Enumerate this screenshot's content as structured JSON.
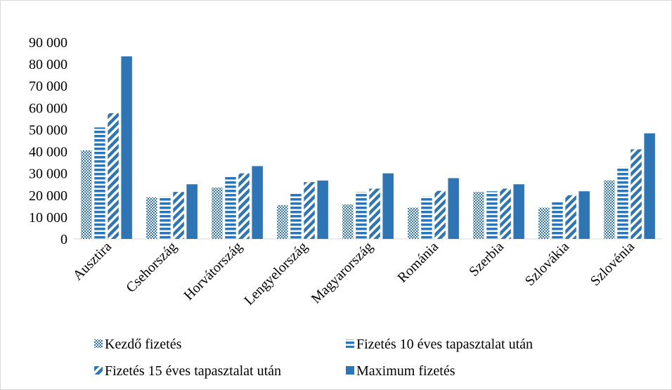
{
  "chart_data": {
    "type": "bar",
    "title": "",
    "xlabel": "",
    "ylabel": "",
    "ylim": [
      0,
      90000
    ],
    "yticks": [
      0,
      10000,
      20000,
      30000,
      40000,
      50000,
      60000,
      70000,
      80000,
      90000
    ],
    "ytick_labels": [
      "0",
      "10 000",
      "20 000",
      "30 000",
      "40 000",
      "50 000",
      "60 000",
      "70 000",
      "80 000",
      "90 000"
    ],
    "grid": false,
    "legend_position": "bottom",
    "categories": [
      "Ausztira",
      "Csehország",
      "Horvátország",
      "Lengyelország",
      "Magyarország",
      "Románia",
      "Szerbia",
      "Szlovákia",
      "Szlovénia"
    ],
    "series": [
      {
        "name": "Kezdő fizetés",
        "pattern": "dots",
        "color": "#2E75B6",
        "values": [
          40500,
          19000,
          23500,
          15500,
          15800,
          14300,
          21500,
          14300,
          26800
        ]
      },
      {
        "name": "Fizetés 10 éves tapasztalat után",
        "pattern": "horizontal-stripes",
        "color": "#2E75B6",
        "values": [
          51000,
          19500,
          29000,
          21000,
          21500,
          19500,
          21800,
          17500,
          33000
        ]
      },
      {
        "name": "Fizetés 15 éves tapasztalat után",
        "pattern": "diagonal-stripes",
        "color": "#2E75B6",
        "values": [
          57500,
          21500,
          30000,
          26000,
          23000,
          22000,
          23000,
          20000,
          41000
        ]
      },
      {
        "name": "Maximum fizetés",
        "pattern": "solid",
        "color": "#2E75B6",
        "values": [
          83500,
          25000,
          33300,
          26700,
          30000,
          27800,
          25000,
          21800,
          48300
        ]
      }
    ]
  }
}
